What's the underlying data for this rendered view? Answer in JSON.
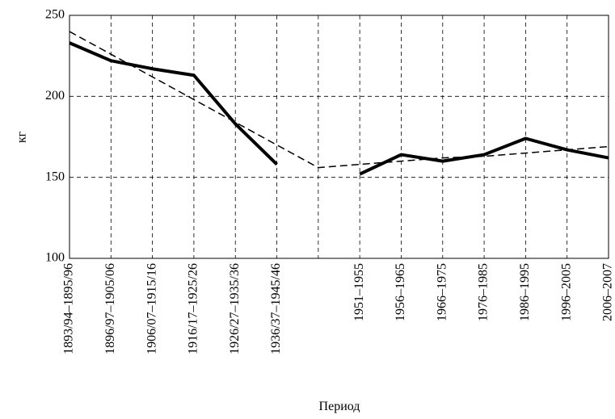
{
  "chart_data": {
    "type": "line",
    "ylabel": "кг",
    "xlabel": "Период",
    "categories": [
      "1893/94–1895/96",
      "1896/97–1905/06",
      "1906/07–1915/16",
      "1916/17–1925/26",
      "1926/27–1935/36",
      "1936/37–1945/46",
      null,
      "1951–1955",
      "1956–1965",
      "1966–1975",
      "1976–1985",
      "1986–1995",
      "1996–2005",
      "2006–2007"
    ],
    "series": [
      {
        "color": "#000000",
        "style": "solid",
        "values": [
          233,
          222,
          217,
          213,
          183,
          158,
          null,
          152,
          164,
          160,
          164,
          174,
          167,
          162
        ]
      },
      {
        "color": "#000000",
        "style": "dashed",
        "values": [
          240,
          226,
          212,
          198,
          184,
          170,
          156,
          158,
          160,
          162,
          163,
          165,
          167,
          169
        ]
      }
    ],
    "ylim": [
      100,
      250
    ],
    "yticks": [
      100,
      150,
      200,
      250
    ],
    "grid": true
  }
}
